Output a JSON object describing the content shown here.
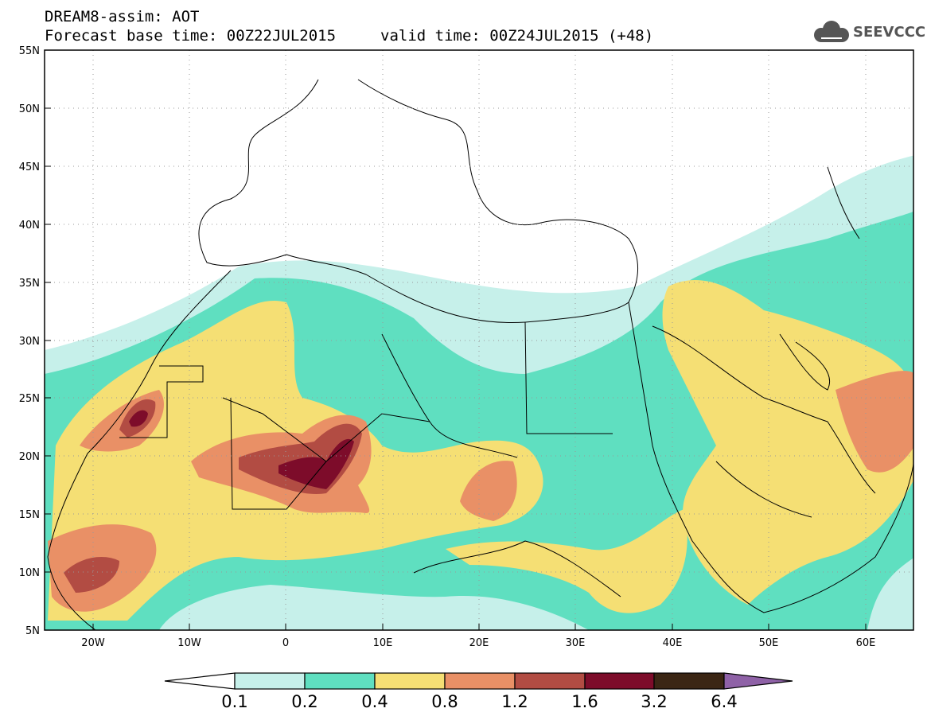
{
  "header": {
    "title": "DREAM8-assim: AOT",
    "base_time": "Forecast base time: 00Z22JUL2015",
    "valid_time": "valid time: 00Z24JUL2015 (+48)"
  },
  "logo": {
    "text": "SEEVCCC",
    "icon": "cloud-icon",
    "color": "#555555"
  },
  "map": {
    "lat_labels": [
      "55N",
      "50N",
      "45N",
      "40N",
      "35N",
      "30N",
      "25N",
      "20N",
      "15N",
      "10N",
      "5N"
    ],
    "lon_labels": [
      "20W",
      "10W",
      "0",
      "10E",
      "20E",
      "30E",
      "40E",
      "50E",
      "60E"
    ]
  },
  "colorbar": {
    "labels": [
      "0.1",
      "0.2",
      "0.4",
      "0.8",
      "1.2",
      "1.6",
      "3.2",
      "6.4"
    ],
    "colors": [
      "#ffffff",
      "#c6f0ea",
      "#5fdfc0",
      "#f5df74",
      "#e99066",
      "#b24c43",
      "#7d0c2a",
      "#3b2614",
      "#8f62a7"
    ]
  }
}
